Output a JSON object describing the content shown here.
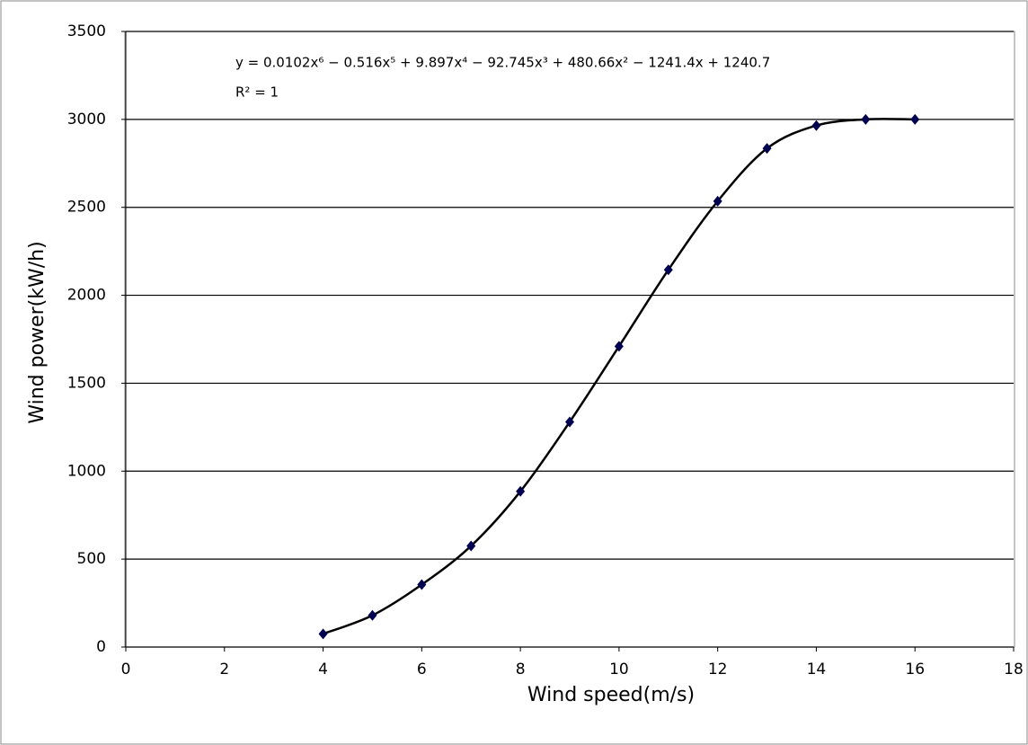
{
  "chart_data": {
    "type": "scatter",
    "equation": "y = 0.0102x⁶ − 0.516x⁵ + 9.897x⁴ − 92.745x³ + 480.66x² − 1241.4x + 1240.7",
    "r_squared": "R² = 1",
    "x_label": "Wind speed(m/s)",
    "y_label": "Wind power(kW/h)",
    "series": [
      {
        "color": "#000050",
        "line_color": "#000000",
        "x": [
          4,
          5,
          6,
          7,
          8,
          9,
          10,
          11,
          12,
          13,
          14,
          15,
          16
        ],
        "values": [
          75,
          180,
          355,
          575,
          885,
          1280,
          1710,
          2145,
          2535,
          2835,
          2965,
          3000,
          3000
        ]
      }
    ],
    "xlim": [
      0,
      18
    ],
    "xticks": [
      0,
      2,
      4,
      6,
      8,
      10,
      12,
      14,
      16,
      18
    ],
    "ylim": [
      0,
      3500
    ],
    "yticks": [
      0,
      500,
      1000,
      1500,
      2000,
      2500,
      3000,
      3500
    ],
    "grid": true
  }
}
